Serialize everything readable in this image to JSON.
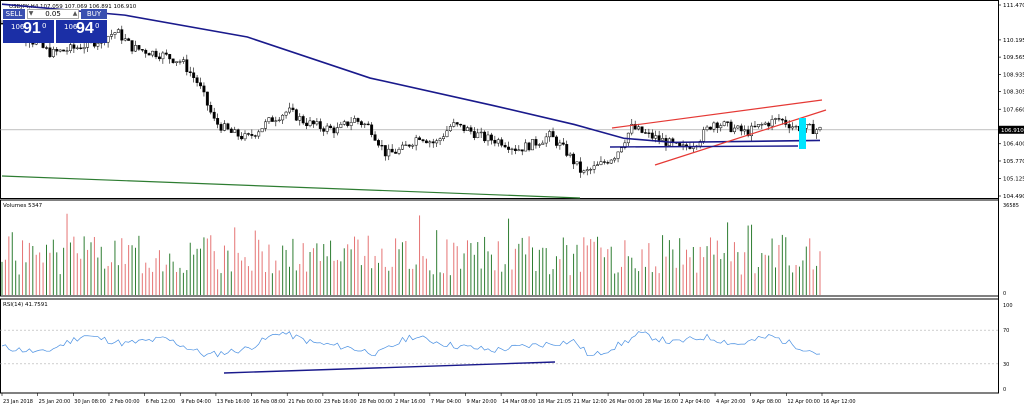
{
  "header": {
    "info": "USDJPY,H4  107.059 107.069 106.891 106.910",
    "volumes_label": "Volumes 5347",
    "rsi_label": "RSI(14) 41.7591"
  },
  "trade_panel": {
    "sell_label": "SELL",
    "buy_label": "BUY",
    "lot": "0.05",
    "sell_big": "106",
    "sell_pips": "91",
    "sell_sup": "0",
    "buy_big": "106",
    "buy_pips": "94",
    "buy_sup": "0"
  },
  "price_axis": {
    "labels": [
      "111.470",
      "110.195",
      "109.565",
      "108.935",
      "108.305",
      "107.660",
      "106.910",
      "106.400",
      "105.770",
      "105.125",
      "104.490"
    ],
    "current_price": "106.910"
  },
  "volume_axis": {
    "top": "36585",
    "bottom": "0"
  },
  "rsi_axis": {
    "labels": [
      "100",
      "70",
      "30",
      "0"
    ]
  },
  "time_axis": {
    "labels": [
      "23 Jan 2018",
      "25 Jan 20:00",
      "30 Jan 08:00",
      "2 Feb 00:00",
      "6 Feb 12:00",
      "9 Feb 04:00",
      "13 Feb 16:00",
      "16 Feb 08:00",
      "21 Feb 00:00",
      "23 Feb 16:00",
      "28 Feb 00:00",
      "2 Mar 16:00",
      "7 Mar 04:00",
      "9 Mar 20:00",
      "14 Mar 08:00",
      "18 Mar 21:05",
      "21 Mar 12:00",
      "26 Mar 00:00",
      "28 Mar 16:00",
      "2 Apr 04:00",
      "4 Apr 20:00",
      "9 Apr 08:00",
      "12 Apr 00:00",
      "16 Apr 12:00"
    ]
  },
  "chart_data": {
    "type": "candlestick",
    "symbol": "USDJPY",
    "timeframe": "H4",
    "ohlc_last": {
      "open": 107.059,
      "high": 107.069,
      "low": 106.891,
      "close": 106.91
    },
    "close_path": [
      [
        0,
        110.8
      ],
      [
        0.03,
        110.3
      ],
      [
        0.06,
        109.7
      ],
      [
        0.09,
        109.9
      ],
      [
        0.12,
        110.2
      ],
      [
        0.14,
        110.5
      ],
      [
        0.16,
        109.9
      ],
      [
        0.19,
        109.7
      ],
      [
        0.22,
        109.4
      ],
      [
        0.24,
        108.6
      ],
      [
        0.26,
        107.2
      ],
      [
        0.28,
        106.8
      ],
      [
        0.3,
        106.6
      ],
      [
        0.33,
        107.3
      ],
      [
        0.35,
        107.6
      ],
      [
        0.37,
        107.2
      ],
      [
        0.39,
        107.0
      ],
      [
        0.41,
        106.9
      ],
      [
        0.43,
        107.3
      ],
      [
        0.45,
        107.0
      ],
      [
        0.47,
        106.0
      ],
      [
        0.49,
        106.2
      ],
      [
        0.51,
        106.7
      ],
      [
        0.53,
        106.4
      ],
      [
        0.55,
        107.1
      ],
      [
        0.57,
        106.9
      ],
      [
        0.59,
        106.6
      ],
      [
        0.61,
        106.5
      ],
      [
        0.63,
        106.2
      ],
      [
        0.65,
        106.4
      ],
      [
        0.67,
        106.7
      ],
      [
        0.69,
        106.1
      ],
      [
        0.71,
        105.3
      ],
      [
        0.73,
        105.6
      ],
      [
        0.75,
        106.0
      ],
      [
        0.77,
        107.0
      ],
      [
        0.79,
        106.7
      ],
      [
        0.81,
        106.5
      ],
      [
        0.83,
        106.2
      ],
      [
        0.85,
        106.5
      ],
      [
        0.87,
        107.2
      ],
      [
        0.89,
        107.0
      ],
      [
        0.91,
        106.8
      ],
      [
        0.93,
        107.1
      ],
      [
        0.95,
        107.3
      ],
      [
        0.97,
        107.0
      ],
      [
        1,
        106.91
      ]
    ],
    "moving_average_path": [
      [
        0,
        111.5
      ],
      [
        0.15,
        111.1
      ],
      [
        0.3,
        110.3
      ],
      [
        0.45,
        108.8
      ],
      [
        0.6,
        107.8
      ],
      [
        0.7,
        107.1
      ],
      [
        0.76,
        106.6
      ],
      [
        0.82,
        106.45
      ],
      [
        1,
        106.52
      ]
    ],
    "volume_level_range": [
      8000,
      36585
    ],
    "rsi_guides": [
      70,
      30
    ],
    "rsi_path": [
      [
        0,
        50
      ],
      [
        0.05,
        43
      ],
      [
        0.1,
        64
      ],
      [
        0.15,
        54
      ],
      [
        0.2,
        60
      ],
      [
        0.25,
        40
      ],
      [
        0.3,
        48
      ],
      [
        0.34,
        68
      ],
      [
        0.38,
        55
      ],
      [
        0.42,
        50
      ],
      [
        0.46,
        42
      ],
      [
        0.5,
        63
      ],
      [
        0.55,
        52
      ],
      [
        0.6,
        46
      ],
      [
        0.64,
        51
      ],
      [
        0.7,
        57
      ],
      [
        0.72,
        38
      ],
      [
        0.76,
        55
      ],
      [
        0.78,
        66
      ],
      [
        0.82,
        55
      ],
      [
        0.86,
        62
      ],
      [
        0.9,
        53
      ],
      [
        0.94,
        63
      ],
      [
        0.97,
        52
      ],
      [
        1,
        41.76
      ]
    ]
  }
}
